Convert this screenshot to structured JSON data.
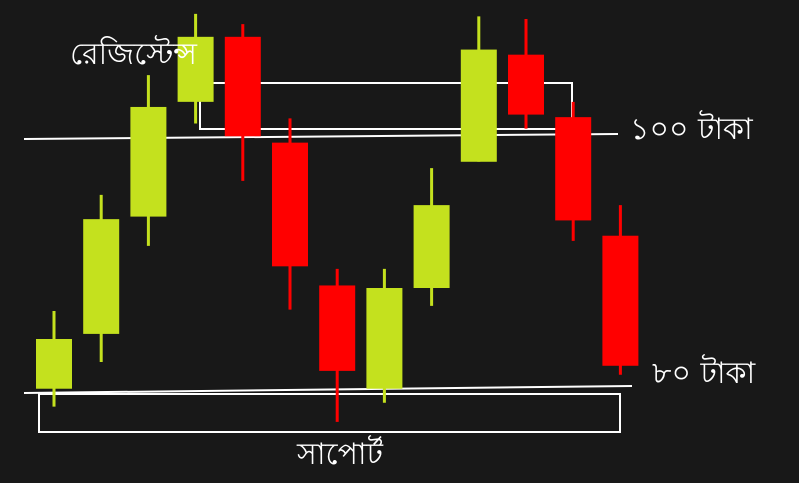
{
  "chart_data": {
    "type": "candlestick",
    "grid": false,
    "colors": {
      "background": "#181818",
      "bullish": "#c4e11e",
      "bearish": "#ff0000",
      "lines": "#ffffff"
    },
    "annotations": {
      "resistance_label": "রেজিস্টেন্স",
      "support_label": "সাপোর্ট",
      "resistance_price_label": "১০০ টাকা",
      "support_price_label": "৮০ টাকা"
    },
    "levels": {
      "resistance_price": 100,
      "support_price": 80
    },
    "candles": [
      {
        "open": 80.1,
        "high": 86.2,
        "low": 78.7,
        "close": 84.0
      },
      {
        "open": 84.4,
        "high": 95.3,
        "low": 82.2,
        "close": 93.4
      },
      {
        "open": 93.6,
        "high": 104.7,
        "low": 91.3,
        "close": 102.2
      },
      {
        "open": 102.6,
        "high": 109.5,
        "low": 100.9,
        "close": 107.7
      },
      {
        "open": 107.7,
        "high": 108.7,
        "low": 96.4,
        "close": 99.9
      },
      {
        "open": 99.4,
        "high": 101.3,
        "low": 86.3,
        "close": 89.7
      },
      {
        "open": 88.2,
        "high": 89.5,
        "low": 77.5,
        "close": 81.5
      },
      {
        "open": 80.1,
        "high": 89.5,
        "low": 79.0,
        "close": 88.0
      },
      {
        "open": 88.0,
        "high": 97.4,
        "low": 86.6,
        "close": 94.5
      },
      {
        "open": 97.9,
        "high": 109.3,
        "low": 97.9,
        "close": 106.7
      },
      {
        "open": 106.3,
        "high": 109.1,
        "low": 100.5,
        "close": 101.6
      },
      {
        "open": 101.4,
        "high": 102.6,
        "low": 91.7,
        "close": 93.3
      },
      {
        "open": 92.1,
        "high": 94.5,
        "low": 81.2,
        "close": 81.9
      }
    ]
  }
}
